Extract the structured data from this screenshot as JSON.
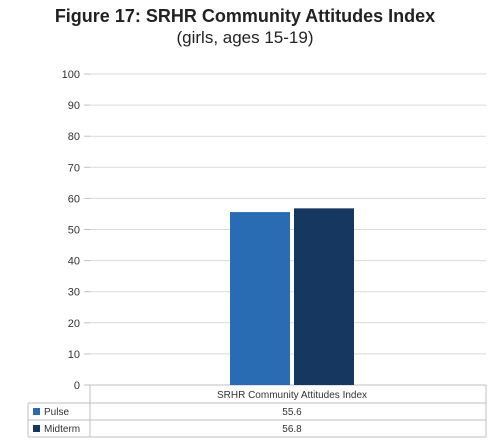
{
  "chart_data": {
    "type": "bar",
    "title": "Figure 17: SRHR Community Attitudes Index",
    "subtitle": "(girls, ages 15-19)",
    "categories": [
      "SRHR Community Attitudes Index"
    ],
    "series": [
      {
        "name": "Pulse",
        "values": [
          55.6
        ],
        "value_labels": [
          "55.6"
        ],
        "color": "#2a6cb3"
      },
      {
        "name": "Midterm",
        "values": [
          56.8
        ],
        "value_labels": [
          "56.8"
        ],
        "color": "#16375f"
      }
    ],
    "ylim": [
      0,
      100
    ],
    "yticks": [
      0,
      10,
      20,
      30,
      40,
      50,
      60,
      70,
      80,
      90,
      100
    ],
    "grid": true,
    "legend": "data-table-bottom"
  }
}
